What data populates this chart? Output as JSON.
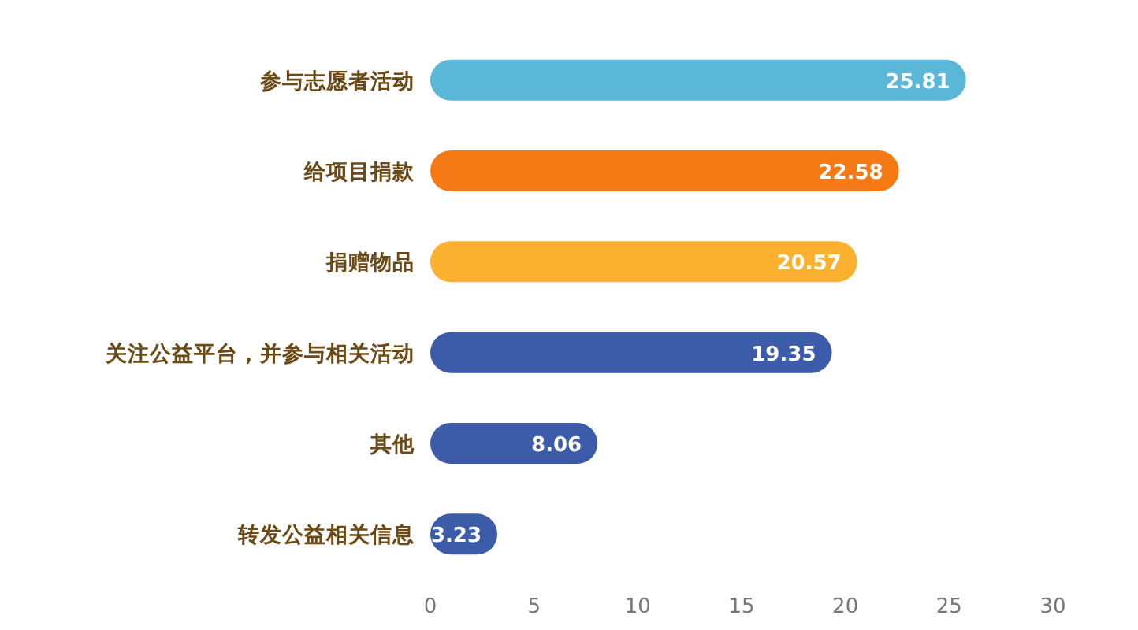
{
  "chart_data": {
    "type": "bar",
    "orientation": "horizontal",
    "categories": [
      "参与志愿者活动",
      "给项目捐款",
      "捐赠物品",
      "关注公益平台，并参与相关活动",
      "其他",
      "转发公益相关信息"
    ],
    "values": [
      25.81,
      22.58,
      20.57,
      19.35,
      8.06,
      3.23
    ],
    "colors": [
      "#5ab7d8",
      "#f57a16",
      "#fbb12f",
      "#3c5caa",
      "#3c5caa",
      "#3c5caa"
    ],
    "xlim": [
      0,
      30
    ],
    "xticks": [
      0,
      5,
      10,
      15,
      20,
      25,
      30
    ],
    "data_labels": true
  }
}
